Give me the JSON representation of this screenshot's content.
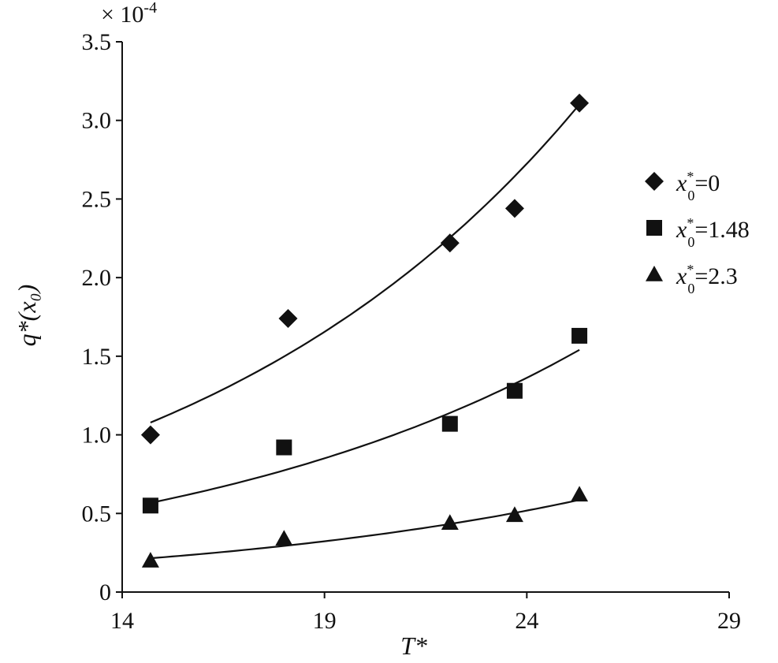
{
  "chart_data": {
    "type": "scatter",
    "title": "",
    "xlabel": "T*",
    "ylabel": "q*(x₀)",
    "y_multiplier": "× 10",
    "y_multiplier_exp": "-4",
    "xlim": [
      14,
      29
    ],
    "ylim": [
      0,
      3.5
    ],
    "x_ticks": [
      14,
      19,
      24,
      29
    ],
    "y_ticks": [
      0,
      0.5,
      1.0,
      1.5,
      2.0,
      2.5,
      3.0,
      3.5
    ],
    "x_tick_labels": [
      "14",
      "19",
      "24",
      "29"
    ],
    "y_tick_labels": [
      "0",
      "0.5",
      "1.0",
      "1.5",
      "2.0",
      "2.5",
      "3.0",
      "3.5"
    ],
    "grid": false,
    "legend_position": "right",
    "series": [
      {
        "name": "x₀*=0",
        "legend_var": "x",
        "legend_sup": "*",
        "legend_sub": "0",
        "legend_value": "=0",
        "marker": "diamond",
        "x": [
          14.7,
          18.1,
          22.1,
          23.7,
          25.3
        ],
        "y": [
          1.0,
          1.74,
          2.22,
          2.44,
          3.11
        ],
        "fit": {
          "a": 1.078,
          "b": 0.0997,
          "x0": 14.7,
          "x_range": [
            14.7,
            25.3
          ]
        }
      },
      {
        "name": "x₀*=1.48",
        "legend_var": "x",
        "legend_sup": "*",
        "legend_sub": "0",
        "legend_value": "=1.48",
        "marker": "square",
        "x": [
          14.7,
          18.0,
          22.1,
          23.7,
          25.3
        ],
        "y": [
          0.55,
          0.92,
          1.07,
          1.28,
          1.63
        ],
        "fit": {
          "a": 0.567,
          "b": 0.0943,
          "x0": 14.7,
          "x_range": [
            14.7,
            25.3
          ]
        }
      },
      {
        "name": "x₀*=2.3",
        "legend_var": "x",
        "legend_sup": "*",
        "legend_sub": "0",
        "legend_value": "=2.3",
        "marker": "triangle",
        "x": [
          14.7,
          18.0,
          22.1,
          23.7,
          25.3
        ],
        "y": [
          0.2,
          0.34,
          0.44,
          0.49,
          0.62
        ],
        "fit": {
          "a": 0.215,
          "b": 0.0946,
          "x0": 14.7,
          "x_range": [
            14.7,
            25.3
          ]
        }
      }
    ]
  }
}
